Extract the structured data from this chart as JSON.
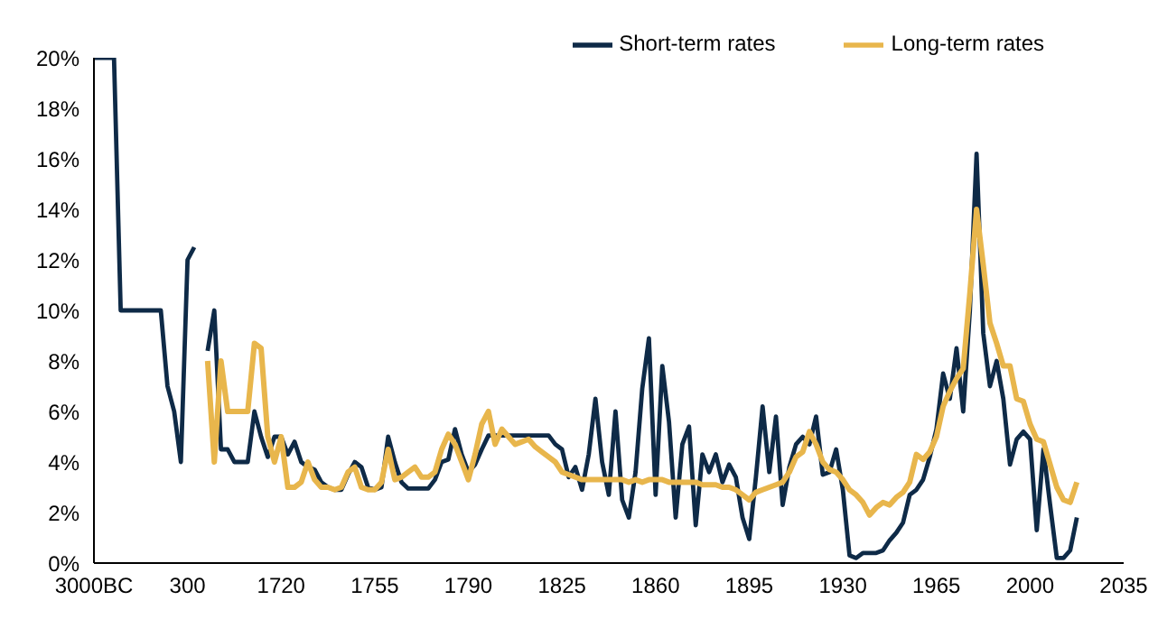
{
  "chart_data": {
    "type": "line",
    "legend": "top right",
    "categories": [
      "3000BC",
      null,
      null,
      null,
      null,
      null,
      null,
      null,
      null,
      null,
      null,
      null,
      null,
      null,
      "300",
      null,
      null,
      null,
      null,
      null,
      null,
      null,
      null,
      null,
      null,
      null,
      null,
      null,
      "1720",
      null,
      null,
      null,
      null,
      null,
      null,
      null,
      null,
      null,
      null,
      null,
      null,
      null,
      "1755",
      null,
      null,
      null,
      null,
      null,
      null,
      null,
      null,
      null,
      null,
      null,
      null,
      null,
      "1790",
      null,
      null,
      null,
      null,
      null,
      null,
      null,
      null,
      null,
      null,
      null,
      null,
      null,
      "1825",
      null,
      null,
      null,
      null,
      null,
      null,
      null,
      null,
      null,
      null,
      null,
      null,
      null,
      "1860",
      null,
      null,
      null,
      null,
      null,
      null,
      null,
      null,
      null,
      null,
      null,
      null,
      null,
      "1895",
      null,
      null,
      null,
      null,
      null,
      null,
      null,
      null,
      null,
      null,
      null,
      null,
      null,
      "1930",
      null,
      null,
      null,
      null,
      null,
      null,
      null,
      null,
      null,
      null,
      null,
      null,
      null,
      "1965",
      null,
      null,
      null,
      null,
      null,
      null,
      null,
      null,
      null,
      null,
      null,
      null,
      null,
      "2000",
      null,
      null,
      null,
      null,
      null,
      null,
      null,
      null,
      null,
      null,
      null,
      null,
      null,
      "2035"
    ],
    "ylim": [
      0,
      20
    ],
    "yticks": [
      {
        "value": 0,
        "label": "0%"
      },
      {
        "value": 2,
        "label": "2%"
      },
      {
        "value": 4,
        "label": "4%"
      },
      {
        "value": 6,
        "label": "6%"
      },
      {
        "value": 8,
        "label": "8%"
      },
      {
        "value": 10,
        "label": "10%"
      },
      {
        "value": 12,
        "label": "12%"
      },
      {
        "value": 14,
        "label": "14%"
      },
      {
        "value": 16,
        "label": "16%"
      },
      {
        "value": 18,
        "label": "18%"
      },
      {
        "value": 20,
        "label": "20%"
      }
    ],
    "series": [
      {
        "name": "Short-term rates",
        "color": "#0e2a47",
        "values": [
          20,
          20,
          20,
          20,
          10,
          10,
          10,
          10,
          10,
          10,
          10,
          7,
          6,
          4,
          12,
          12.5,
          null,
          8.4,
          10,
          4.5,
          4.5,
          4,
          4,
          4,
          6,
          5,
          4.2,
          5,
          5,
          4.3,
          4.8,
          4,
          3.8,
          3.7,
          3.2,
          3,
          2.9,
          2.9,
          3.5,
          4,
          3.8,
          3,
          2.9,
          3,
          5,
          4,
          3.2,
          2.95,
          2.95,
          2.95,
          2.95,
          3.3,
          4,
          4.1,
          5.3,
          4.3,
          3.6,
          3.9,
          4.5,
          5.05,
          5.05,
          5.05,
          5.05,
          5.05,
          5.05,
          5.05,
          5.05,
          5.05,
          5.05,
          4.7,
          4.5,
          3.4,
          3.8,
          2.9,
          4.3,
          6.5,
          4,
          2.7,
          6,
          2.5,
          1.8,
          3.6,
          6.9,
          8.9,
          2.7,
          7.8,
          5.6,
          1.8,
          4.7,
          5.4,
          1.5,
          4.3,
          3.6,
          4.3,
          3.2,
          3.9,
          3.4,
          1.8,
          0.95,
          3.4,
          6.2,
          3.6,
          5.8,
          2.3,
          3.8,
          4.7,
          5,
          4.7,
          5.8,
          3.5,
          3.6,
          4.5,
          2.9,
          0.3,
          0.2,
          0.4,
          0.4,
          0.4,
          0.5,
          0.9,
          1.2,
          1.6,
          2.7,
          2.9,
          3.3,
          4.2,
          5.3,
          7.5,
          6.5,
          8.5,
          6,
          10,
          16.2,
          9.1,
          7,
          8,
          6.5,
          3.9,
          4.9,
          5.2,
          4.9,
          1.3,
          4.5,
          2.3,
          0.2,
          0.2,
          0.5,
          1.8,
          null,
          null,
          null,
          null,
          null,
          null,
          null
        ]
      },
      {
        "name": "Long-term rates",
        "color": "#e8b64c",
        "values": [
          null,
          null,
          null,
          null,
          null,
          null,
          null,
          null,
          null,
          null,
          null,
          null,
          null,
          null,
          null,
          null,
          null,
          8,
          4,
          8,
          6,
          6,
          6,
          6,
          8.7,
          8.5,
          5,
          4,
          5,
          3,
          3,
          3.2,
          4,
          3.3,
          3,
          3,
          2.9,
          3,
          3.6,
          3.8,
          3,
          2.9,
          2.9,
          3.2,
          4.5,
          3.3,
          3.4,
          3.6,
          3.8,
          3.4,
          3.4,
          3.6,
          4.5,
          5.1,
          4.7,
          4,
          3.3,
          4.3,
          5.5,
          6,
          4.7,
          5.3,
          5,
          4.7,
          4.8,
          4.9,
          4.6,
          4.4,
          4.2,
          4,
          3.6,
          3.5,
          3.4,
          3.3,
          3.3,
          3.3,
          3.3,
          3.3,
          3.3,
          3.3,
          3.2,
          3.3,
          3.2,
          3.3,
          3.3,
          3.3,
          3.2,
          3.2,
          3.2,
          3.2,
          3.2,
          3.1,
          3.1,
          3.1,
          3,
          3,
          2.9,
          2.7,
          2.5,
          2.8,
          2.9,
          3,
          3.1,
          3.2,
          3.6,
          4.2,
          4.4,
          5.2,
          4.7,
          4,
          3.7,
          3.6,
          3.3,
          2.9,
          2.7,
          2.4,
          1.9,
          2.2,
          2.4,
          2.3,
          2.6,
          2.8,
          3.2,
          4.3,
          4.1,
          4.4,
          5,
          6.2,
          6.8,
          7.3,
          7.7,
          10.7,
          14,
          11.8,
          9.5,
          8.7,
          7.8,
          7.8,
          6.5,
          6.4,
          5.5,
          4.9,
          4.8,
          3.9,
          3,
          2.5,
          2.4,
          3.2,
          null,
          null,
          null,
          null,
          null,
          null,
          null
        ]
      }
    ]
  }
}
